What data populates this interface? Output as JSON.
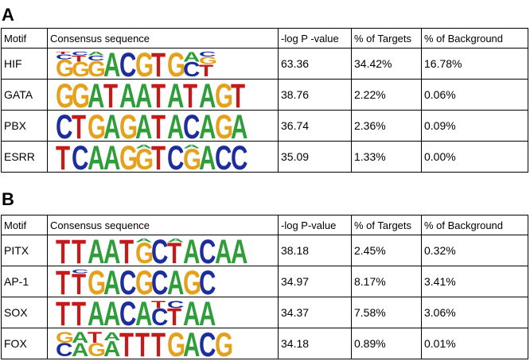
{
  "colors": {
    "A": "#2e9d3a",
    "C": "#1e2d9c",
    "G": "#e5a11c",
    "T": "#c41a1a"
  },
  "panels": [
    {
      "label": "A",
      "headers": {
        "motif": "Motif",
        "consensus": "Consensus sequence",
        "pvalue": "-log P -value",
        "targets": "% of Targets",
        "background": "% of Background"
      },
      "rows": [
        {
          "motif": "HIF",
          "pvalue": "63.36",
          "targets": "34.42%",
          "background": "16.78%",
          "logo": [
            [
              [
                "G",
                0.7
              ],
              [
                "C",
                0.2
              ],
              [
                "T",
                0.1
              ]
            ],
            [
              [
                "G",
                0.6
              ],
              [
                "T",
                0.25
              ],
              [
                "C",
                0.15
              ]
            ],
            [
              [
                "G",
                0.65
              ],
              [
                "C",
                0.2
              ],
              [
                "A",
                0.15
              ]
            ],
            [
              [
                "A",
                1
              ]
            ],
            [
              [
                "C",
                1
              ]
            ],
            [
              [
                "G",
                1
              ]
            ],
            [
              [
                "T",
                1
              ]
            ],
            [
              [
                "G",
                1
              ]
            ],
            [
              [
                "C",
                0.6
              ],
              [
                "A",
                0.4
              ]
            ],
            [
              [
                "T",
                0.5
              ],
              [
                "G",
                0.3
              ],
              [
                "C",
                0.2
              ]
            ]
          ]
        },
        {
          "motif": "GATA",
          "pvalue": "38.76",
          "targets": "2.22%",
          "background": "0.06%",
          "logo": [
            [
              [
                "G",
                1
              ]
            ],
            [
              [
                "G",
                1
              ]
            ],
            [
              [
                "A",
                1
              ]
            ],
            [
              [
                "T",
                1
              ]
            ],
            [
              [
                "A",
                1
              ]
            ],
            [
              [
                "A",
                1
              ]
            ],
            [
              [
                "T",
                1
              ]
            ],
            [
              [
                "A",
                1
              ]
            ],
            [
              [
                "T",
                1
              ]
            ],
            [
              [
                "A",
                1
              ]
            ],
            [
              [
                "G",
                1
              ]
            ],
            [
              [
                "T",
                1
              ]
            ]
          ]
        },
        {
          "motif": "PBX",
          "pvalue": "36.74",
          "targets": "2.36%",
          "background": "0.09%",
          "logo": [
            [
              [
                "C",
                1
              ]
            ],
            [
              [
                "T",
                1
              ]
            ],
            [
              [
                "G",
                1
              ]
            ],
            [
              [
                "A",
                1
              ]
            ],
            [
              [
                "G",
                1
              ]
            ],
            [
              [
                "A",
                1
              ]
            ],
            [
              [
                "T",
                1
              ]
            ],
            [
              [
                "A",
                1
              ]
            ],
            [
              [
                "C",
                1
              ]
            ],
            [
              [
                "A",
                1
              ]
            ],
            [
              [
                "G",
                1
              ]
            ],
            [
              [
                "A",
                1
              ]
            ]
          ]
        },
        {
          "motif": "ESRR",
          "pvalue": "35.09",
          "targets": "1.33%",
          "background": "0.00%",
          "logo": [
            [
              [
                "T",
                1
              ]
            ],
            [
              [
                "C",
                1
              ]
            ],
            [
              [
                "A",
                1
              ]
            ],
            [
              [
                "A",
                1
              ]
            ],
            [
              [
                "G",
                1
              ]
            ],
            [
              [
                "G",
                0.85
              ],
              [
                "A",
                0.15
              ]
            ],
            [
              [
                "T",
                1
              ]
            ],
            [
              [
                "C",
                1
              ]
            ],
            [
              [
                "G",
                0.85
              ],
              [
                "A",
                0.15
              ]
            ],
            [
              [
                "A",
                1
              ]
            ],
            [
              [
                "C",
                1
              ]
            ],
            [
              [
                "C",
                1
              ]
            ]
          ]
        }
      ]
    },
    {
      "label": "B",
      "headers": {
        "motif": "Motif",
        "consensus": "Consensus sequence",
        "pvalue": "-log P-value",
        "targets": "% of Targets",
        "background": "% of Background"
      },
      "rows": [
        {
          "motif": "PITX",
          "pvalue": "38.18",
          "targets": "2.45%",
          "background": "0.32%",
          "logo": [
            [
              [
                "T",
                1
              ]
            ],
            [
              [
                "T",
                1
              ]
            ],
            [
              [
                "A",
                1
              ]
            ],
            [
              [
                "A",
                1
              ]
            ],
            [
              [
                "T",
                1
              ]
            ],
            [
              [
                "G",
                0.85
              ],
              [
                "A",
                0.15
              ]
            ],
            [
              [
                "C",
                1
              ]
            ],
            [
              [
                "T",
                0.85
              ],
              [
                "A",
                0.15
              ]
            ],
            [
              [
                "A",
                1
              ]
            ],
            [
              [
                "C",
                1
              ]
            ],
            [
              [
                "A",
                1
              ]
            ],
            [
              [
                "A",
                1
              ]
            ]
          ]
        },
        {
          "motif": "AP-1",
          "pvalue": "34.97",
          "targets": "8.17%",
          "background": "3.41%",
          "logo": [
            [
              [
                "T",
                1
              ]
            ],
            [
              [
                "T",
                0.85
              ],
              [
                "C",
                0.15
              ]
            ],
            [
              [
                "G",
                1
              ]
            ],
            [
              [
                "A",
                1
              ]
            ],
            [
              [
                "C",
                1
              ]
            ],
            [
              [
                "G",
                1
              ]
            ],
            [
              [
                "C",
                1
              ]
            ],
            [
              [
                "A",
                1
              ]
            ],
            [
              [
                "G",
                1
              ]
            ],
            [
              [
                "C",
                1
              ]
            ]
          ]
        },
        {
          "motif": "SOX",
          "pvalue": "34.37",
          "targets": "7.58%",
          "background": "3.06%",
          "logo": [
            [
              [
                "T",
                1
              ]
            ],
            [
              [
                "T",
                1
              ]
            ],
            [
              [
                "A",
                1
              ]
            ],
            [
              [
                "A",
                1
              ]
            ],
            [
              [
                "C",
                1
              ]
            ],
            [
              [
                "A",
                1
              ]
            ],
            [
              [
                "C",
                0.7
              ],
              [
                "T",
                0.3
              ]
            ],
            [
              [
                "T",
                0.7
              ],
              [
                "C",
                0.3
              ]
            ],
            [
              [
                "A",
                1
              ]
            ],
            [
              [
                "A",
                1
              ]
            ]
          ]
        },
        {
          "motif": "FOX",
          "pvalue": "34.18",
          "targets": "0.89%",
          "background": "0.01%",
          "logo": [
            [
              [
                "C",
                0.55
              ],
              [
                "G",
                0.45
              ]
            ],
            [
              [
                "A",
                0.55
              ],
              [
                "A",
                0.45
              ]
            ],
            [
              [
                "G",
                0.55
              ],
              [
                "T",
                0.45
              ]
            ],
            [
              [
                "A",
                0.65
              ],
              [
                "A",
                0.35
              ]
            ],
            [
              [
                "T",
                1
              ]
            ],
            [
              [
                "T",
                1
              ]
            ],
            [
              [
                "T",
                1
              ]
            ],
            [
              [
                "G",
                1
              ]
            ],
            [
              [
                "A",
                1
              ]
            ],
            [
              [
                "C",
                1
              ]
            ],
            [
              [
                "G",
                1
              ]
            ]
          ]
        }
      ]
    }
  ]
}
